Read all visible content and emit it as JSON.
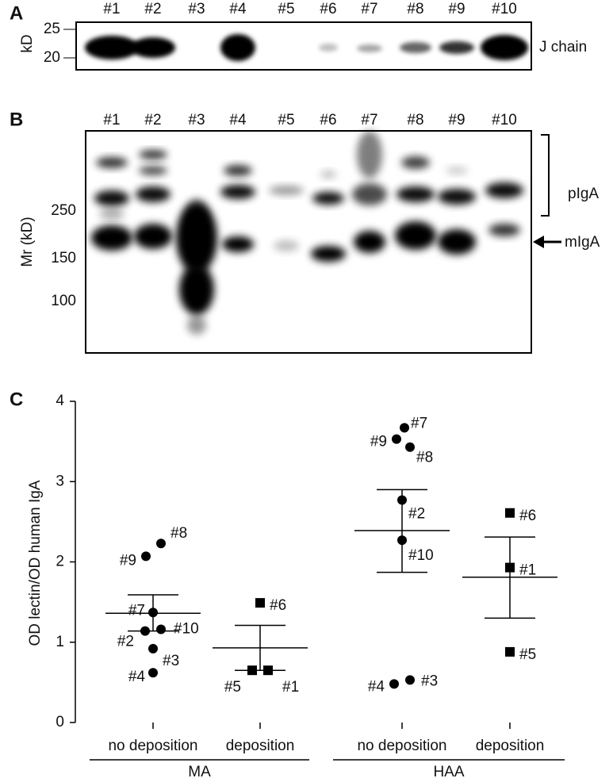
{
  "panel_a": {
    "letter": "A",
    "lanes": [
      "#1",
      "#2",
      "#3",
      "#4",
      "#5",
      "#6",
      "#7",
      "#8",
      "#9",
      "#10"
    ],
    "axis_label": "kD",
    "ticks": [
      "25",
      "20"
    ],
    "band_label": "J chain"
  },
  "panel_b": {
    "letter": "B",
    "lanes": [
      "#1",
      "#2",
      "#3",
      "#4",
      "#5",
      "#6",
      "#7",
      "#8",
      "#9",
      "#10"
    ],
    "axis_label": "Mr (kD)",
    "ticks": [
      "250",
      "150",
      "100"
    ],
    "bracket_label": "pIgA",
    "arrow_label": "mIgA"
  },
  "chart_data": {
    "type": "dot",
    "letter": "C",
    "ylabel": "OD lectin/OD human IgA",
    "ylim": [
      0,
      4
    ],
    "yticks": [
      0,
      1,
      2,
      3,
      4
    ],
    "groups": [
      {
        "label": "no deposition",
        "marker": "circle",
        "mean": 1.36,
        "error": [
          1.14,
          1.59
        ],
        "points": [
          {
            "label": "#8",
            "value": 2.23
          },
          {
            "label": "#9",
            "value": 2.07
          },
          {
            "label": "#7",
            "value": 1.37
          },
          {
            "label": "#10",
            "value": 1.16
          },
          {
            "label": "#2",
            "value": 1.14
          },
          {
            "label": "#3",
            "value": 0.92
          },
          {
            "label": "#4",
            "value": 0.62
          }
        ]
      },
      {
        "label": "deposition",
        "marker": "square",
        "mean": 0.93,
        "error": [
          0.65,
          1.21
        ],
        "points": [
          {
            "label": "#6",
            "value": 1.49
          },
          {
            "label": "#5",
            "value": 0.65
          },
          {
            "label": "#1",
            "value": 0.65
          }
        ]
      },
      {
        "label": "no deposition",
        "marker": "circle",
        "mean": 2.39,
        "error": [
          1.87,
          2.9
        ],
        "points": [
          {
            "label": "#7",
            "value": 3.67
          },
          {
            "label": "#9",
            "value": 3.53
          },
          {
            "label": "#8",
            "value": 3.43
          },
          {
            "label": "#2",
            "value": 2.77
          },
          {
            "label": "#10",
            "value": 2.27
          },
          {
            "label": "#4",
            "value": 0.48
          },
          {
            "label": "#3",
            "value": 0.53
          }
        ]
      },
      {
        "label": "deposition",
        "marker": "square",
        "mean": 1.81,
        "error": [
          1.3,
          2.31
        ],
        "points": [
          {
            "label": "#6",
            "value": 2.61
          },
          {
            "label": "#1",
            "value": 1.93
          },
          {
            "label": "#5",
            "value": 0.88
          }
        ]
      }
    ],
    "supergroups": [
      {
        "label": "MA"
      },
      {
        "label": "HAA"
      }
    ]
  }
}
